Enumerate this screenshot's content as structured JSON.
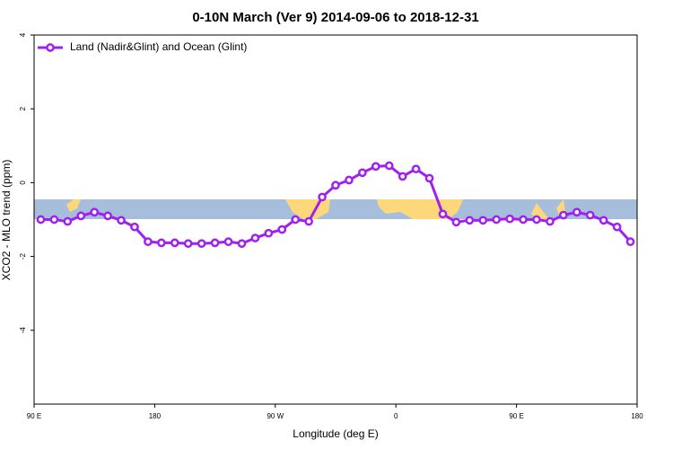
{
  "chart_data": {
    "type": "line",
    "title": "0-10N March (Ver 9)   2014-09-06 to 2018-12-31",
    "x_label": "Longitude (deg E)",
    "y_label": "XCO2 - MLO trend (ppm)",
    "xlim": [
      90,
      540
    ],
    "xticks": [
      {
        "value": 90,
        "label": "90 E"
      },
      180,
      {
        "value": 270,
        "label": "90 W"
      },
      {
        "value": 360,
        "label": "0"
      },
      {
        "value": 450,
        "label": "90 E"
      },
      {
        "value": 540,
        "label": "180"
      }
    ],
    "ylim": [
      -6,
      4
    ],
    "yticks": [
      -4,
      -2,
      0,
      2,
      4
    ],
    "grid": false,
    "legend": "top-left",
    "x": [
      95,
      105,
      115,
      125,
      135,
      145,
      155,
      165,
      175,
      185,
      195,
      205,
      215,
      225,
      235,
      245,
      255,
      265,
      275,
      285,
      295,
      305,
      315,
      325,
      335,
      345,
      355,
      365,
      375,
      385,
      395,
      405,
      415,
      425,
      435,
      445,
      455,
      465,
      475,
      485,
      495,
      505,
      515,
      525,
      535
    ],
    "series": [
      {
        "name": "Land (Nadir&Glint) and Ocean (Glint)",
        "color": "#a020f0",
        "values": [
          -1.0,
          -1.0,
          -1.05,
          -0.9,
          -0.8,
          -0.9,
          -1.02,
          -1.2,
          -1.6,
          -1.63,
          -1.63,
          -1.65,
          -1.65,
          -1.63,
          -1.6,
          -1.65,
          -1.5,
          -1.37,
          -1.27,
          -1.0,
          -1.05,
          -0.39,
          -0.07,
          0.07,
          0.27,
          0.44,
          0.46,
          0.17,
          0.37,
          0.12,
          -0.85,
          -1.07,
          -1.02,
          -1.02,
          -1.0,
          -0.98,
          -1.0,
          -1.0,
          -1.05,
          -0.88,
          -0.8,
          -0.88,
          -1.02,
          -1.2,
          -1.6
        ]
      }
    ]
  }
}
